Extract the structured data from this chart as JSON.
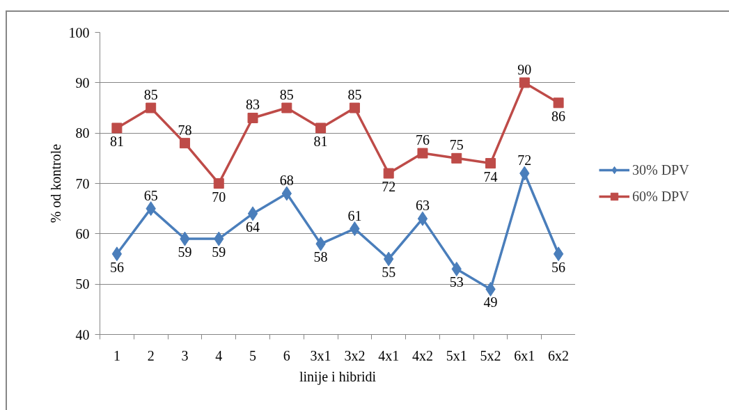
{
  "chart_data": {
    "type": "line",
    "xlabel": "linije i hibridi",
    "ylabel": "% od kontrole",
    "categories": [
      "1",
      "2",
      "3",
      "4",
      "5",
      "6",
      "3x1",
      "3x2",
      "4x1",
      "4x2",
      "5x1",
      "5x2",
      "6x1",
      "6x2"
    ],
    "ylim": [
      40,
      100
    ],
    "yticks": [
      40,
      50,
      60,
      70,
      80,
      90,
      100
    ],
    "grid": "y",
    "legend": "right",
    "data_labels": true,
    "line_style": "solid",
    "series": [
      {
        "name": "30% DPV",
        "color": "#4a7ebb",
        "marker": "diamond",
        "values": [
          56,
          65,
          59,
          59,
          64,
          68,
          58,
          61,
          55,
          63,
          53,
          49,
          72,
          56
        ]
      },
      {
        "name": "60% DPV",
        "color": "#be4b48",
        "marker": "square",
        "values": [
          81,
          85,
          78,
          70,
          83,
          85,
          81,
          85,
          72,
          76,
          75,
          74,
          90,
          86
        ]
      }
    ]
  }
}
